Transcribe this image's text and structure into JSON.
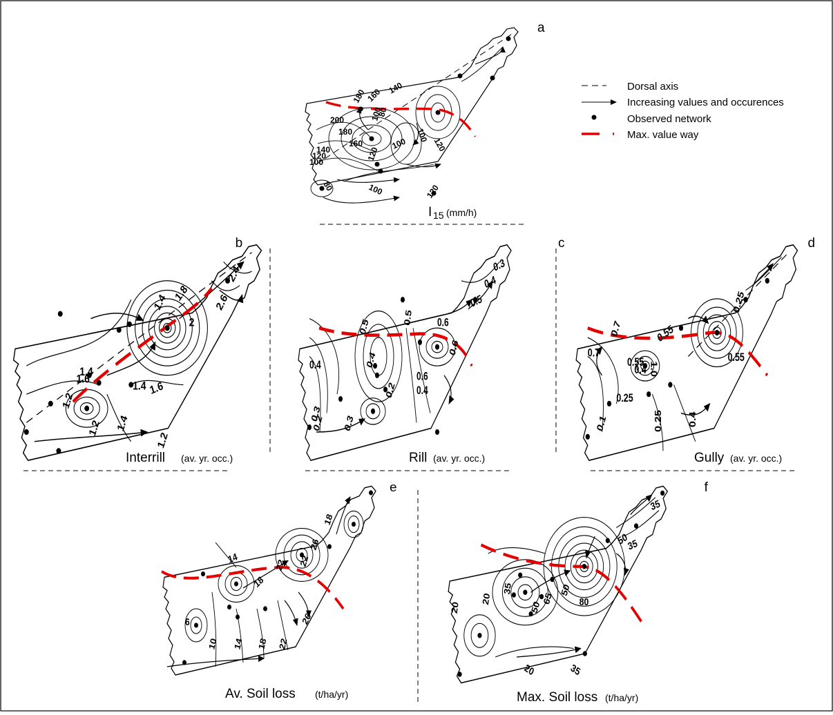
{
  "legend": {
    "dorsal_axis": "Dorsal axis",
    "increasing": "Increasing values and occurences",
    "observed": "Observed network",
    "max_way": "Max. value way"
  },
  "panels": {
    "a": {
      "letter": "a",
      "title": "I",
      "subscript": "15",
      "unit": "(mm/h)",
      "labels": [
        "200",
        "180",
        "160",
        "140",
        "120",
        "100",
        "80",
        "100",
        "120",
        "140",
        "160",
        "180",
        "100",
        "80",
        "100",
        "120",
        "120",
        "100"
      ]
    },
    "b": {
      "letter": "b",
      "title": "Interrill",
      "unit": "(av. yr. occ.)",
      "labels": [
        "1.2",
        "1.4",
        "1.4",
        "1.6",
        "1.6",
        "1.2",
        "1.4",
        "1.2",
        "2.6",
        "2.4",
        "1.8",
        "1.4",
        "2"
      ]
    },
    "c": {
      "letter": "c",
      "title": "Rill",
      "unit": "(av. yr. occ.)",
      "labels": [
        "0.3",
        "0.4",
        "0.5",
        "0.6",
        "0.5",
        "0.6",
        "0.4",
        "0.4",
        "0.3",
        "0.2",
        "0.2",
        "0.3",
        "0.4",
        "0.6",
        "0.5"
      ]
    },
    "d": {
      "letter": "d",
      "title": "Gully",
      "unit": "(av. yr. occ.)",
      "labels": [
        "0.25",
        "0.7",
        "0.55",
        "0.4",
        "0.25",
        "0.1",
        "0.25",
        "0.4",
        "0.55",
        "0.7",
        "0.55",
        "1.0"
      ]
    },
    "e": {
      "letter": "e",
      "title": "Av. Soil loss",
      "unit": "(t/ha/yr)",
      "labels": [
        "14",
        "18",
        "22",
        "26",
        "10",
        "14",
        "18",
        "22",
        "26",
        "6",
        "18",
        "22"
      ]
    },
    "f": {
      "letter": "f",
      "title": "Max. Soil loss",
      "unit": "(t/ha/yr)",
      "labels": [
        "35",
        "50",
        "35",
        "20",
        "20",
        "35",
        "50",
        "65",
        "80",
        "20",
        "35",
        "50"
      ]
    }
  }
}
